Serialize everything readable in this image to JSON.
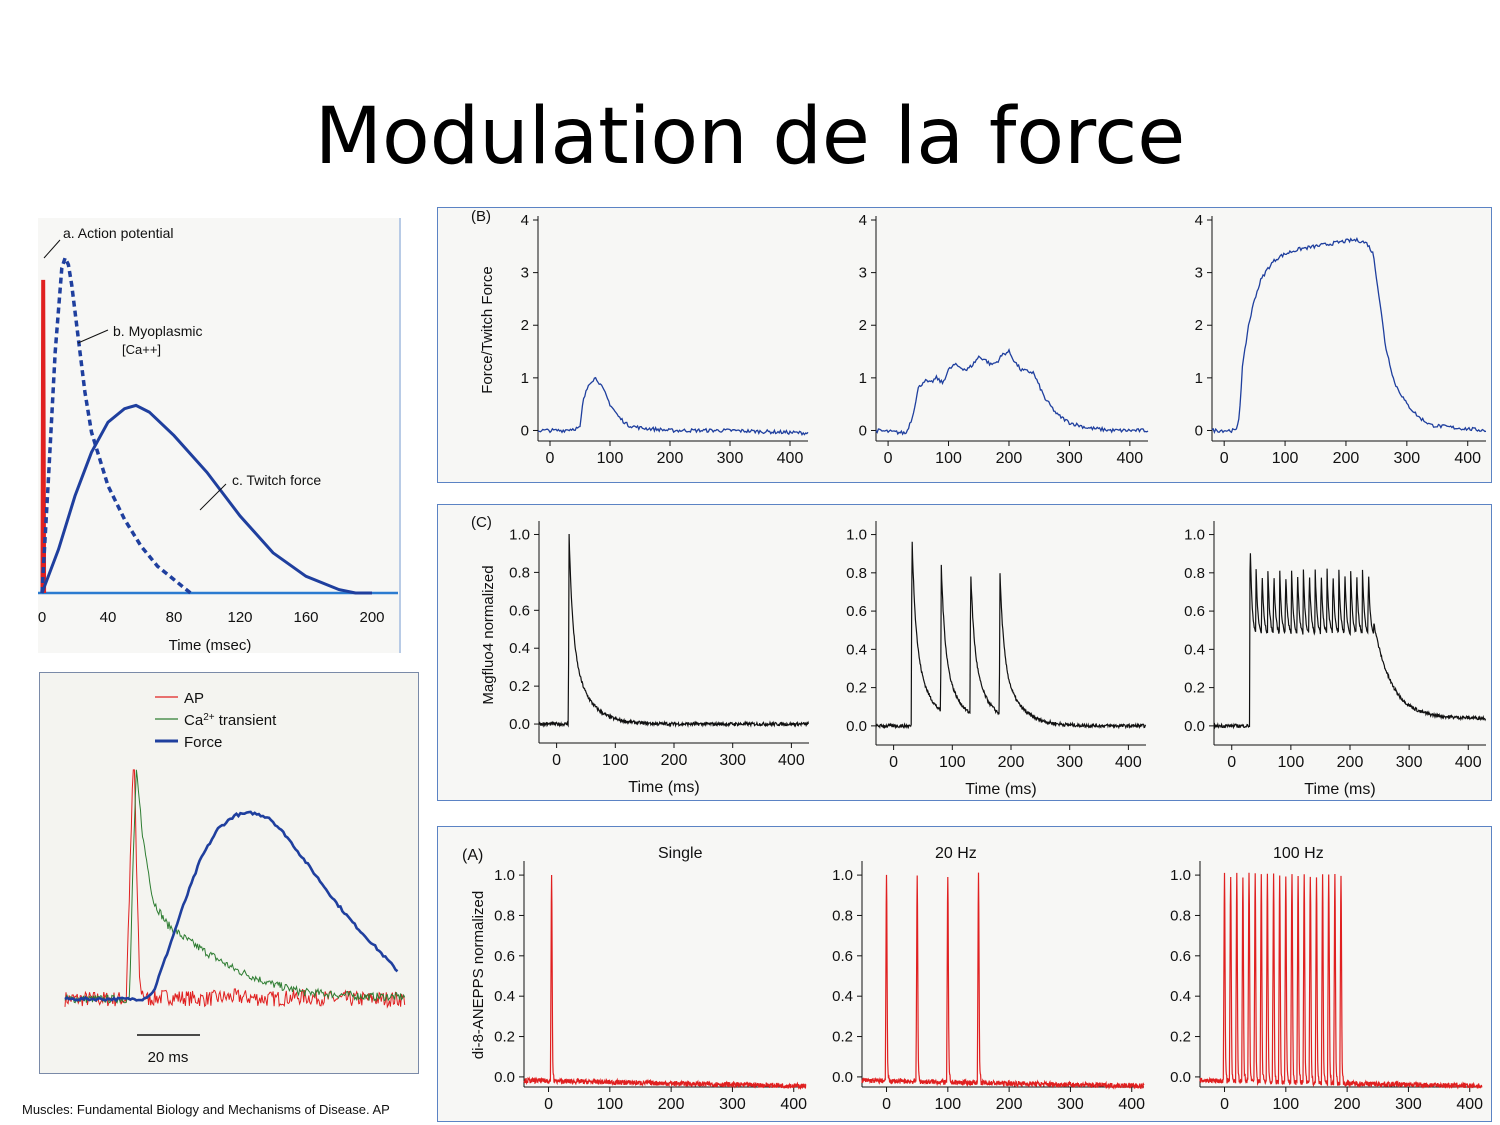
{
  "title": "Modulation de la force",
  "caption": "Muscles: Fundamental Biology and Mechanisms of Disease. AP",
  "colors": {
    "blue": "#1f3f9e",
    "red": "#e02020",
    "green": "#2e7d32",
    "axis": "#111111",
    "panel_border": "#5b83c4"
  },
  "chart_data": [
    {
      "id": "twitch",
      "type": "line",
      "xlabel": "Time (msec)",
      "xlim": [
        0,
        215
      ],
      "ylim": [
        0,
        1
      ],
      "xticks": [
        0,
        40,
        80,
        120,
        160,
        200
      ],
      "series": [
        {
          "name": "a. Action potential",
          "color": "#e02020",
          "style": "solid",
          "x": [
            0,
            0.4,
            1.0,
            1.6
          ],
          "y": [
            0,
            0.93,
            0.93,
            0
          ]
        },
        {
          "name": "b. Myoplasmic [Ca++]",
          "color": "#1f3f9e",
          "style": "dashed",
          "x": [
            0,
            4,
            8,
            12,
            14,
            16,
            18,
            22,
            26,
            30,
            40,
            50,
            60,
            70,
            80,
            90
          ],
          "y": [
            0,
            0.35,
            0.72,
            0.97,
            1.0,
            0.98,
            0.92,
            0.76,
            0.6,
            0.48,
            0.32,
            0.22,
            0.14,
            0.08,
            0.04,
            0.0
          ]
        },
        {
          "name": "c. Twitch force",
          "color": "#1f3f9e",
          "style": "solid",
          "x": [
            0,
            10,
            20,
            30,
            40,
            50,
            57,
            65,
            80,
            100,
            120,
            140,
            160,
            180,
            190,
            200
          ],
          "y": [
            0,
            0.13,
            0.29,
            0.42,
            0.51,
            0.55,
            0.56,
            0.54,
            0.47,
            0.36,
            0.23,
            0.12,
            0.05,
            0.01,
            0.0,
            0.0
          ]
        }
      ],
      "annotations": [
        "a. Action potential",
        "b. Myoplasmic",
        "[Ca++]",
        "c. Twitch force"
      ]
    },
    {
      "id": "overlay",
      "type": "line",
      "legend": [
        "AP",
        "Ca2+ transient",
        "Force"
      ],
      "scale_bar": "20 ms",
      "series": [
        {
          "name": "AP",
          "color": "#e02020",
          "x": [
            0,
            18,
            19,
            20,
            20.5,
            21,
            22,
            24,
            30,
            40,
            50,
            60,
            70,
            80,
            90,
            100
          ],
          "y": [
            0.0,
            0.0,
            0.5,
            1.0,
            1.0,
            0.6,
            0.05,
            0.0,
            0.01,
            0.0,
            0.01,
            0.0,
            0.01,
            0.0,
            0.0,
            0.0
          ]
        },
        {
          "name": "Ca2+ transient",
          "color": "#2e7d32",
          "x": [
            0,
            19,
            20,
            21,
            23,
            26,
            30,
            35,
            40,
            50,
            60,
            70,
            80,
            90,
            100
          ],
          "y": [
            0.0,
            0.0,
            0.6,
            1.0,
            0.7,
            0.43,
            0.33,
            0.27,
            0.22,
            0.13,
            0.07,
            0.03,
            0.02,
            0.01,
            0.01
          ]
        },
        {
          "name": "Force",
          "color": "#1f3f9e",
          "x": [
            0,
            23,
            26,
            30,
            35,
            40,
            45,
            50,
            55,
            60,
            65,
            70,
            75,
            80,
            85,
            90,
            95,
            98
          ],
          "y": [
            0.0,
            0.0,
            0.03,
            0.2,
            0.42,
            0.62,
            0.75,
            0.81,
            0.82,
            0.8,
            0.72,
            0.62,
            0.52,
            0.42,
            0.33,
            0.25,
            0.17,
            0.12
          ]
        }
      ]
    },
    {
      "id": "B",
      "label": "(B)",
      "type": "line",
      "ylabel": "Force/Twitch Force",
      "xlim": [
        -20,
        430
      ],
      "ylim": [
        0,
        4
      ],
      "xticks": [
        0,
        100,
        200,
        300,
        400
      ],
      "yticks": [
        0,
        1,
        2,
        3,
        4
      ],
      "color": "#1f3f9e",
      "panels": [
        {
          "x": [
            -20,
            20,
            50,
            55,
            65,
            75,
            80,
            90,
            100,
            115,
            130,
            150,
            200,
            300,
            430
          ],
          "y": [
            0,
            0,
            0.05,
            0.55,
            0.9,
            1.0,
            0.95,
            0.75,
            0.5,
            0.25,
            0.1,
            0.05,
            0.0,
            0.0,
            -0.05
          ]
        },
        {
          "x": [
            -20,
            30,
            40,
            50,
            60,
            70,
            80,
            90,
            100,
            110,
            120,
            130,
            140,
            150,
            160,
            170,
            180,
            190,
            200,
            210,
            220,
            240,
            260,
            280,
            300,
            330,
            370,
            430
          ],
          "y": [
            0,
            -0.05,
            0.25,
            0.8,
            0.95,
            0.9,
            1.0,
            0.9,
            1.15,
            1.25,
            1.2,
            1.15,
            1.25,
            1.4,
            1.35,
            1.25,
            1.3,
            1.45,
            1.5,
            1.3,
            1.15,
            1.1,
            0.6,
            0.3,
            0.15,
            0.05,
            0.0,
            0.0
          ]
        },
        {
          "x": [
            -20,
            20,
            25,
            30,
            40,
            50,
            60,
            70,
            80,
            90,
            100,
            110,
            125,
            150,
            175,
            200,
            215,
            225,
            235,
            245,
            255,
            265,
            280,
            300,
            320,
            340,
            380,
            430
          ],
          "y": [
            0,
            0,
            0.3,
            1.2,
            2.0,
            2.5,
            2.85,
            3.05,
            3.2,
            3.3,
            3.35,
            3.4,
            3.45,
            3.5,
            3.55,
            3.6,
            3.62,
            3.6,
            3.55,
            3.35,
            2.5,
            1.6,
            0.9,
            0.5,
            0.25,
            0.1,
            0.05,
            0.0
          ]
        }
      ]
    },
    {
      "id": "C",
      "label": "(C)",
      "type": "line",
      "xlabel": "Time (ms)",
      "ylabel": "Magfluo4 normalized",
      "xlim": [
        -30,
        430
      ],
      "ylim": [
        -0.1,
        1.05
      ],
      "xticks": [
        0,
        100,
        200,
        300,
        400
      ],
      "yticks": [
        0.0,
        0.2,
        0.4,
        0.6,
        0.8,
        1.0
      ],
      "color": "#111111",
      "stimulus_times": [
        [
          20
        ],
        [
          30,
          80,
          130,
          180
        ],
        [
          30,
          40,
          50,
          60,
          70,
          80,
          90,
          100,
          110,
          120,
          130,
          140,
          150,
          160,
          170,
          180,
          190,
          200,
          210,
          220,
          230
        ]
      ],
      "peaks": [
        [
          1.0
        ],
        [
          1.0,
          0.84,
          0.82,
          0.8
        ],
        [
          1.0,
          0.84,
          0.84,
          0.84,
          0.84,
          0.84,
          0.84,
          0.84,
          0.84,
          0.84,
          0.84,
          0.84,
          0.84,
          0.84,
          0.84,
          0.84,
          0.84,
          0.84,
          0.84,
          0.84,
          0.84
        ]
      ]
    },
    {
      "id": "A",
      "label": "(A)",
      "type": "line",
      "ylabel": "di-8-ANEPPS normalized",
      "xlim": [
        -40,
        420
      ],
      "ylim": [
        -0.05,
        1.05
      ],
      "xticks": [
        0,
        100,
        200,
        300,
        400
      ],
      "yticks": [
        0.0,
        0.2,
        0.4,
        0.6,
        0.8,
        1.0
      ],
      "color": "#e02020",
      "panel_titles": [
        "Single",
        "20 Hz",
        "100 Hz"
      ],
      "stimulus_times": [
        [
          5
        ],
        [
          0,
          50,
          100,
          150
        ],
        [
          0,
          10,
          20,
          30,
          40,
          50,
          60,
          70,
          80,
          90,
          100,
          110,
          120,
          130,
          140,
          150,
          160,
          170,
          180,
          190
        ]
      ],
      "peak": 1.0
    }
  ]
}
